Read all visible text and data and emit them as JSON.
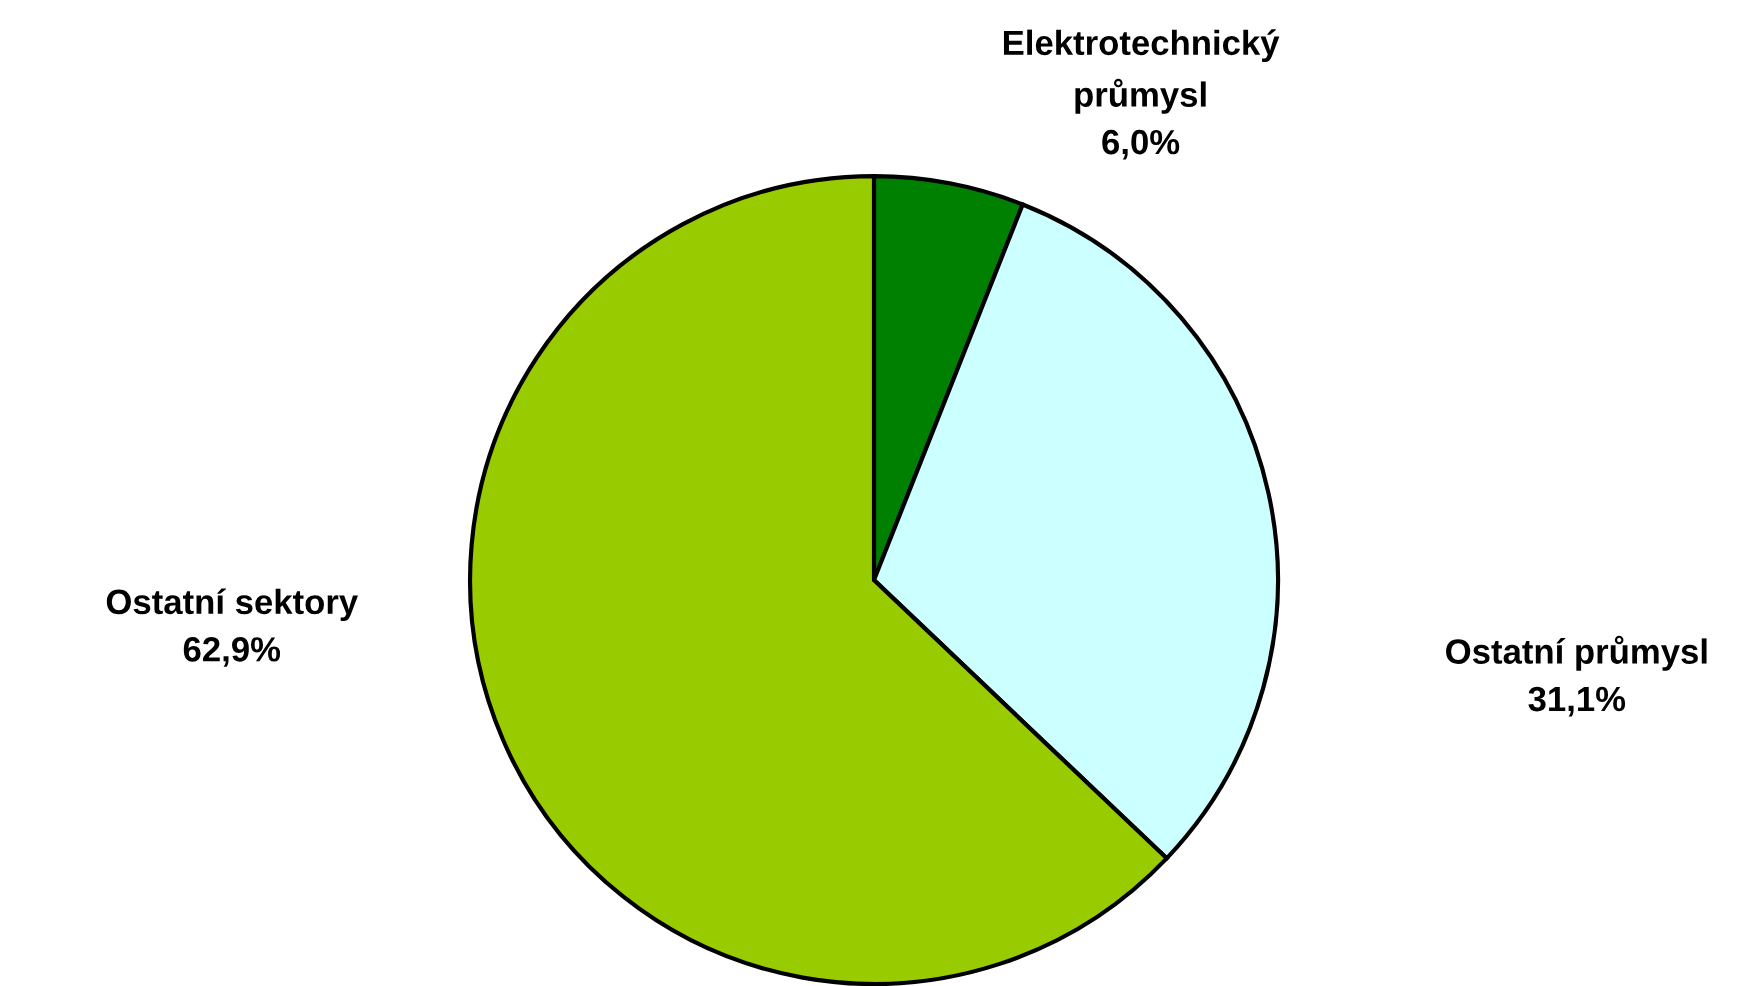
{
  "chart_data": {
    "type": "pie",
    "categories": [
      "Elektrotechnický\nprůmysl",
      "Ostatní průmysl",
      "Ostatní sektory"
    ],
    "values": [
      6.0,
      31.1,
      62.9
    ],
    "value_labels": [
      "6,0%",
      "31,1%",
      "62,9%"
    ],
    "colors": [
      "#008000",
      "#ccffff",
      "#99cc00"
    ],
    "legend": false
  }
}
